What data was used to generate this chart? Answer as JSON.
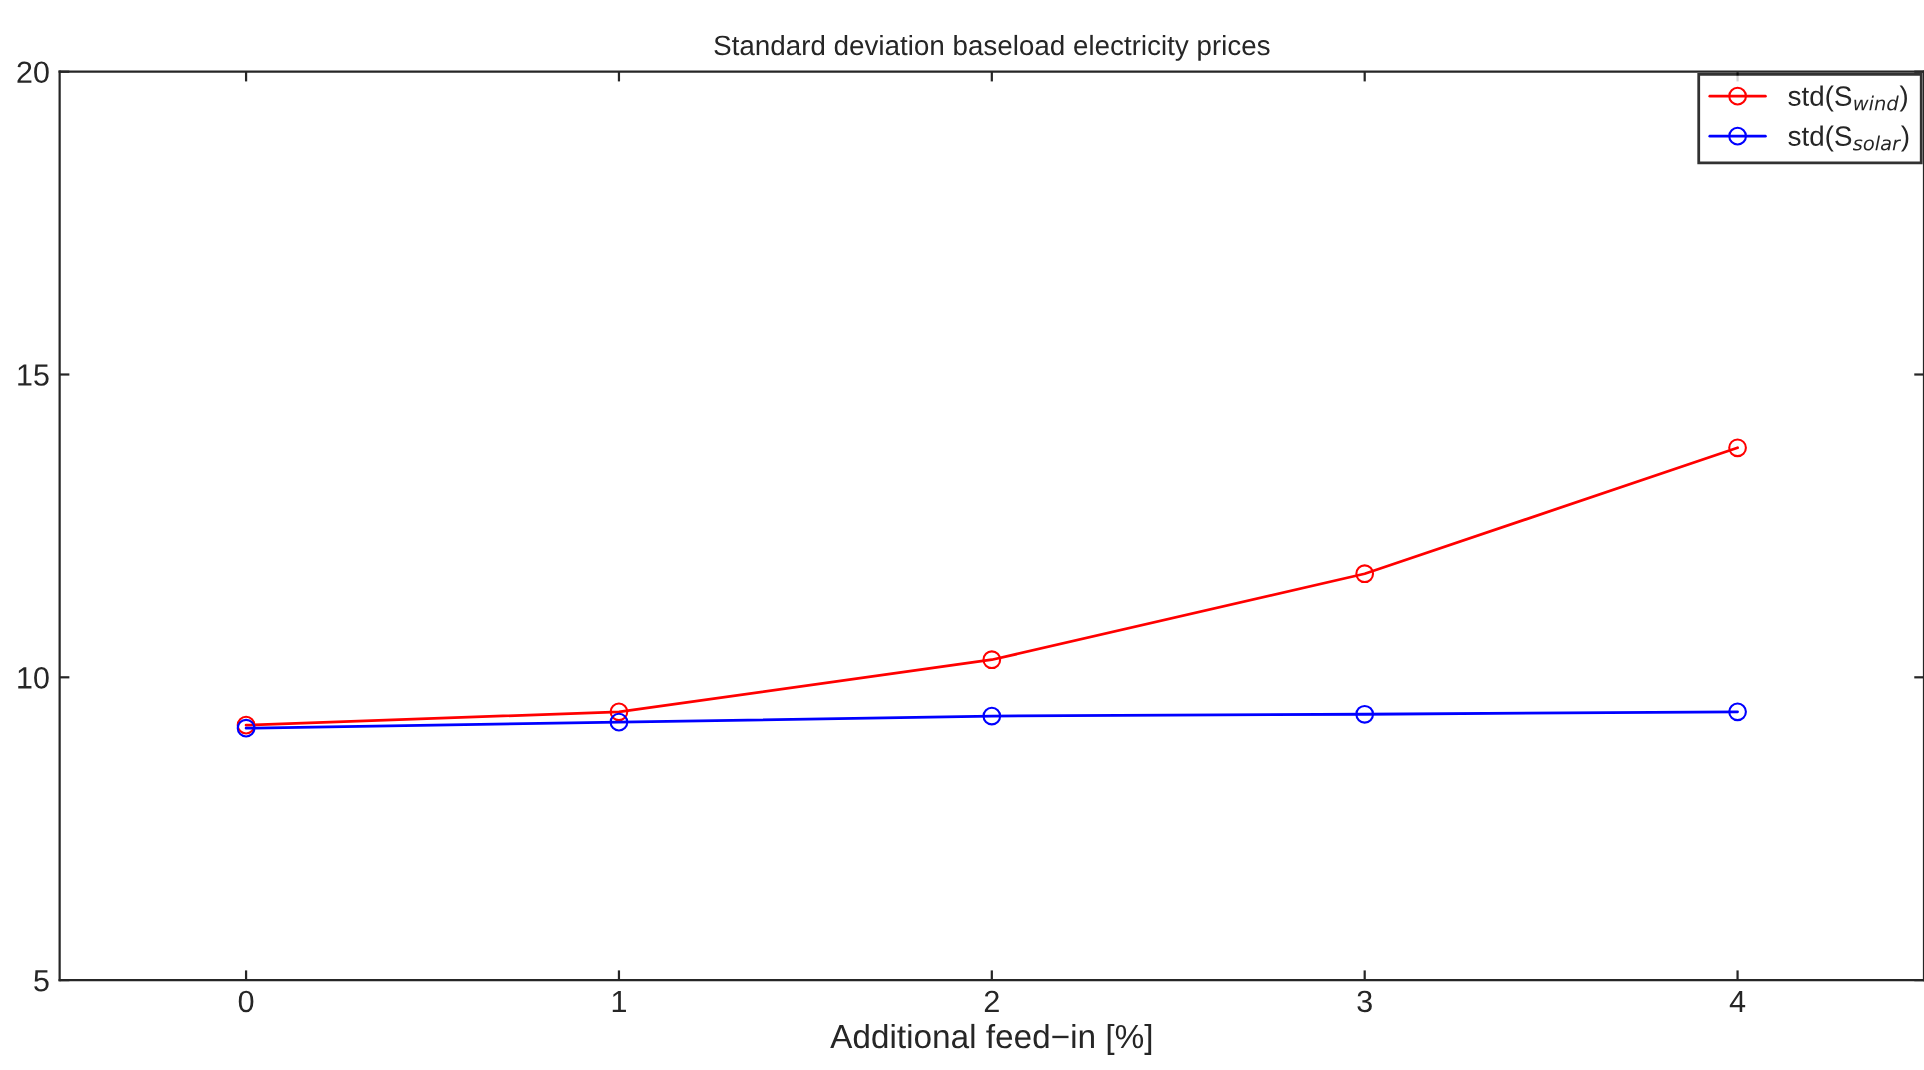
{
  "chart_data": {
    "type": "line",
    "title": "Standard deviation baseload electricity prices",
    "xlabel": "Additional feed−in [%]",
    "x": [
      0,
      1,
      2,
      3,
      4
    ],
    "series": [
      {
        "name": "std(S$_{wind}$)",
        "color": "#ff0000",
        "values": [
          9.21,
          9.43,
          10.29,
          11.71,
          13.79
        ]
      },
      {
        "name": "std(S$_{solar}$)",
        "color": "#0000ff",
        "values": [
          9.16,
          9.26,
          9.36,
          9.39,
          9.43
        ]
      }
    ],
    "xlim": [
      -0.5,
      4.5
    ],
    "xticks": [
      0,
      1,
      2,
      3,
      4
    ],
    "ylim": [
      5,
      20
    ],
    "yticks": [
      5,
      10,
      15,
      20
    ],
    "grid": false,
    "legend": "top right",
    "marker": "circle",
    "line_style": "solid"
  }
}
